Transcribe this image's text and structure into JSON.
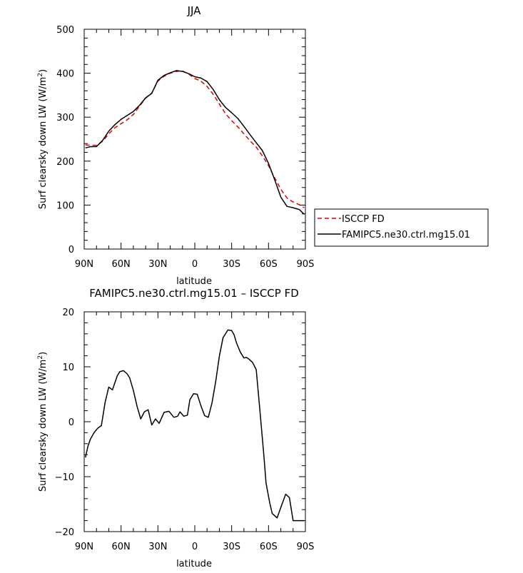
{
  "chart_data": [
    {
      "type": "line",
      "title": "JJA",
      "xlabel": "latitude",
      "ylabel_text": "Surf clearsky down LW (W/m",
      "ylabel_sup": "2",
      "ylabel_close": ")",
      "xlim": [
        -90,
        90
      ],
      "ylim": [
        0,
        500
      ],
      "x_ticks": [
        -90,
        -60,
        -30,
        0,
        30,
        60,
        90
      ],
      "x_tick_labels": [
        "90N",
        "60N",
        "30N",
        "0",
        "30S",
        "60S",
        "90S"
      ],
      "y_ticks": [
        0,
        100,
        200,
        300,
        400,
        500
      ],
      "y_tick_labels": [
        "0",
        "100",
        "200",
        "300",
        "400",
        "500"
      ],
      "legend_position": "right",
      "series": [
        {
          "name": "ISCCP FD",
          "color": "#e00000",
          "dash": "dashed",
          "x": [
            -89,
            -85,
            -80,
            -75,
            -70,
            -65,
            -60,
            -55,
            -50,
            -45,
            -40,
            -35,
            -30,
            -25,
            -20,
            -15,
            -10,
            -5,
            0,
            5,
            10,
            15,
            20,
            25,
            30,
            35,
            40,
            45,
            50,
            55,
            60,
            65,
            70,
            75,
            80,
            85,
            89
          ],
          "y": [
            237,
            236,
            236,
            245,
            262,
            276,
            285,
            294,
            306,
            325,
            343,
            355,
            382,
            393,
            400,
            404,
            405,
            398,
            388,
            382,
            370,
            352,
            330,
            308,
            292,
            278,
            262,
            246,
            232,
            212,
            190,
            162,
            136,
            116,
            107,
            101,
            94
          ]
        },
        {
          "name": "FAMIPC5.ne30.ctrl.mg15.01",
          "color": "#000000",
          "dash": "solid",
          "x": [
            -89,
            -85,
            -80,
            -75,
            -70,
            -65,
            -60,
            -55,
            -50,
            -45,
            -40,
            -35,
            -30,
            -25,
            -20,
            -15,
            -10,
            -5,
            0,
            5,
            10,
            15,
            20,
            25,
            30,
            35,
            40,
            45,
            50,
            55,
            60,
            65,
            70,
            75,
            80,
            85,
            89
          ],
          "y": [
            230,
            233,
            233,
            247,
            268,
            283,
            295,
            304,
            313,
            327,
            344,
            354,
            384,
            395,
            401,
            406,
            404,
            399,
            392,
            389,
            381,
            363,
            340,
            322,
            310,
            297,
            279,
            260,
            242,
            224,
            195,
            158,
            118,
            97,
            94,
            90,
            79
          ]
        }
      ]
    },
    {
      "type": "line",
      "title": "FAMIPC5.ne30.ctrl.mg15.01 – ISCCP FD",
      "xlabel": "latitude",
      "ylabel_text": "Surf clearsky down LW (W/m",
      "ylabel_sup": "2",
      "ylabel_close": ")",
      "xlim": [
        -90,
        90
      ],
      "ylim": [
        -20,
        20
      ],
      "x_ticks": [
        -90,
        -60,
        -30,
        0,
        30,
        60,
        90
      ],
      "x_tick_labels": [
        "90N",
        "60N",
        "30N",
        "0",
        "30S",
        "60S",
        "90S"
      ],
      "y_ticks": [
        -20,
        -10,
        0,
        10,
        20
      ],
      "y_tick_labels": [
        "−20",
        "−10",
        "0",
        "10",
        "20"
      ],
      "series": [
        {
          "color": "#000000",
          "dash": "solid",
          "x": [
            -89,
            -87,
            -85,
            -82,
            -79,
            -76,
            -73,
            -70,
            -67,
            -63,
            -61,
            -58,
            -55,
            -53,
            -50,
            -47,
            -44,
            -41,
            -38,
            -35,
            -32,
            -29,
            -25,
            -21,
            -17,
            -14,
            -12,
            -9,
            -6,
            -4,
            -1,
            2,
            5,
            8,
            11,
            14,
            17,
            20,
            23,
            27,
            30,
            32,
            34,
            37,
            40,
            42,
            44,
            47,
            50,
            53,
            56,
            58,
            61,
            63,
            67,
            70,
            74,
            77,
            80,
            83,
            86,
            89
          ],
          "y": [
            -6.5,
            -4.5,
            -3.2,
            -2.0,
            -1.2,
            -0.7,
            3.5,
            6.3,
            5.8,
            8.4,
            9.1,
            9.3,
            8.7,
            8.0,
            5.7,
            2.8,
            0.5,
            1.8,
            2.2,
            -0.6,
            0.5,
            -0.3,
            1.7,
            1.9,
            0.8,
            1.0,
            1.8,
            1.0,
            1.2,
            4.0,
            5.1,
            5.0,
            2.9,
            1.1,
            0.8,
            3.4,
            7.3,
            11.9,
            15.3,
            16.7,
            16.6,
            15.8,
            14.3,
            12.7,
            11.6,
            11.7,
            11.4,
            10.8,
            9.5,
            2.0,
            -5.5,
            -11.2,
            -14.8,
            -16.7,
            -17.5,
            -15.6,
            -13.2,
            -13.8,
            -18.0,
            -18.0,
            -18.0,
            -18.0
          ]
        }
      ]
    }
  ]
}
